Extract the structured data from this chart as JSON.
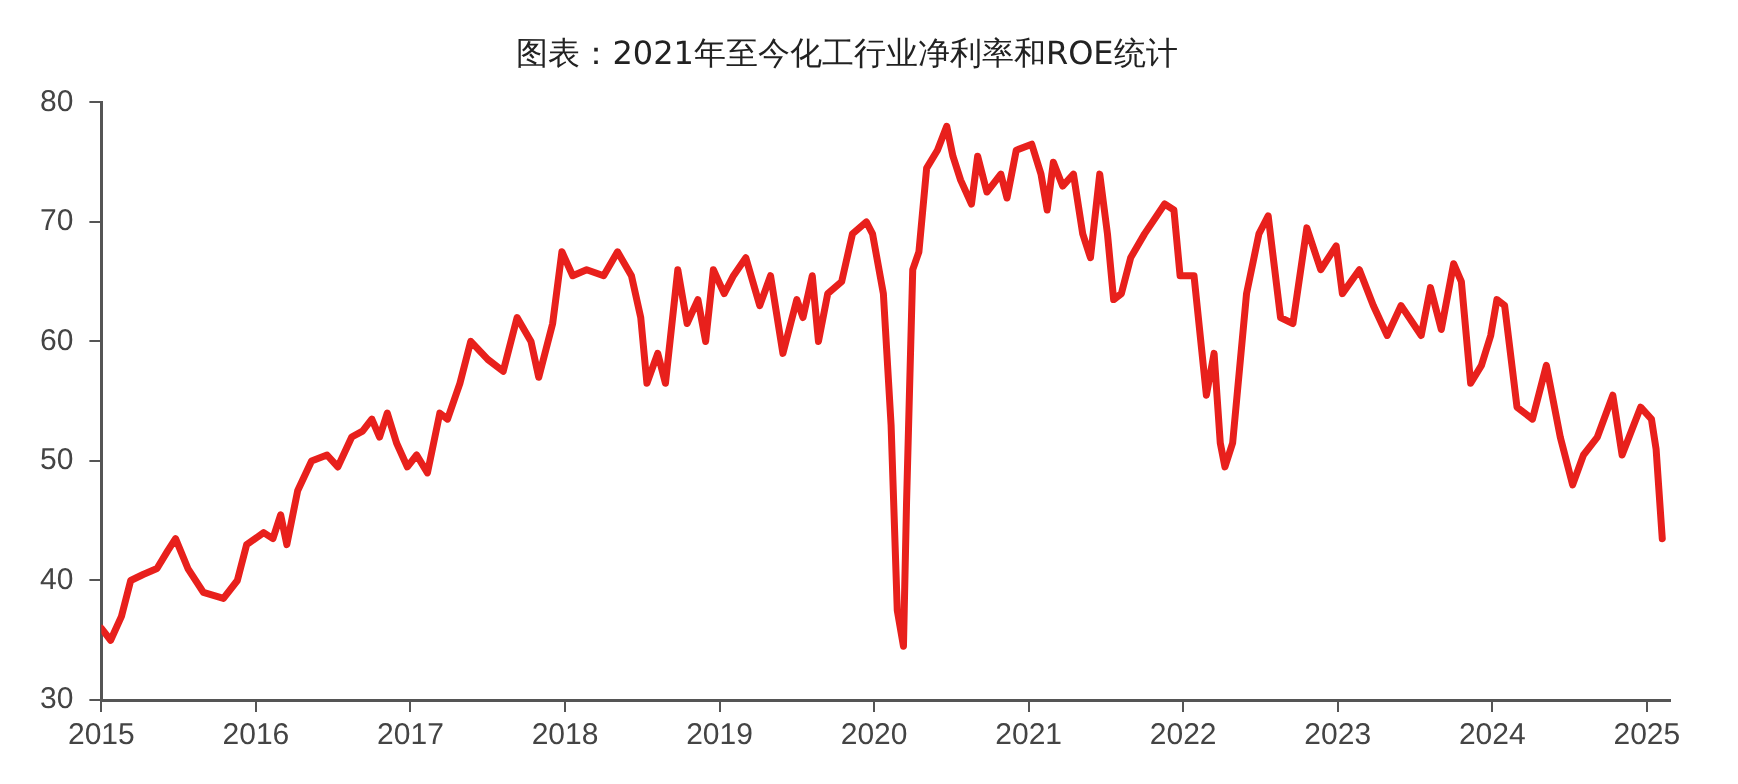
{
  "chart_data": {
    "type": "line",
    "title": "图表：2021年至今化工行业净利率和ROE统计",
    "xlim": [
      2015,
      2025.15
    ],
    "xticks": [
      2015,
      2016,
      2017,
      2018,
      2019,
      2020,
      2021,
      2022,
      2023,
      2024,
      2025
    ],
    "ylim": [
      30,
      80
    ],
    "yticks": [
      30,
      40,
      50,
      60,
      70,
      80
    ],
    "grid": false,
    "legend": false,
    "marker": "none",
    "line_style": "solid",
    "series": [
      {
        "color": "#e8201c",
        "x": [
          2015.0,
          2015.06,
          2015.13,
          2015.19,
          2015.27,
          2015.36,
          2015.43,
          2015.48,
          2015.56,
          2015.66,
          2015.79,
          2015.88,
          2015.94,
          2016.05,
          2016.11,
          2016.16,
          2016.2,
          2016.27,
          2016.36,
          2016.46,
          2016.53,
          2016.62,
          2016.69,
          2016.75,
          2016.8,
          2016.85,
          2016.91,
          2016.98,
          2017.04,
          2017.11,
          2017.19,
          2017.24,
          2017.32,
          2017.39,
          2017.5,
          2017.6,
          2017.69,
          2017.78,
          2017.83,
          2017.92,
          2017.98,
          2018.05,
          2018.14,
          2018.25,
          2018.34,
          2018.43,
          2018.49,
          2018.53,
          2018.6,
          2018.65,
          2018.73,
          2018.79,
          2018.86,
          2018.91,
          2018.96,
          2019.03,
          2019.09,
          2019.17,
          2019.26,
          2019.33,
          2019.41,
          2019.5,
          2019.54,
          2019.6,
          2019.64,
          2019.7,
          2019.79,
          2019.86,
          2019.95,
          2019.99,
          2020.06,
          2020.11,
          2020.15,
          2020.19,
          2020.21,
          2020.25,
          2020.29,
          2020.34,
          2020.41,
          2020.47,
          2020.51,
          2020.56,
          2020.63,
          2020.67,
          2020.73,
          2020.82,
          2020.86,
          2020.92,
          2021.02,
          2021.08,
          2021.12,
          2021.16,
          2021.22,
          2021.29,
          2021.35,
          2021.4,
          2021.46,
          2021.51,
          2021.55,
          2021.6,
          2021.66,
          2021.75,
          2021.88,
          2021.94,
          2021.98,
          2022.07,
          2022.15,
          2022.2,
          2022.24,
          2022.27,
          2022.32,
          2022.41,
          2022.49,
          2022.55,
          2022.63,
          2022.71,
          2022.8,
          2022.89,
          2022.99,
          2023.03,
          2023.14,
          2023.23,
          2023.32,
          2023.41,
          2023.54,
          2023.6,
          2023.67,
          2023.75,
          2023.8,
          2023.86,
          2023.93,
          2023.99,
          2024.03,
          2024.08,
          2024.16,
          2024.26,
          2024.35,
          2024.44,
          2024.52,
          2024.59,
          2024.68,
          2024.78,
          2024.84,
          2024.96,
          2025.03,
          2025.06,
          2025.1
        ],
        "values": [
          36,
          35,
          37,
          40,
          40.5,
          41,
          42.5,
          43.5,
          41,
          39,
          38.5,
          40,
          43,
          44,
          43.5,
          45.5,
          43,
          47.5,
          50,
          50.5,
          49.5,
          52,
          52.5,
          53.5,
          52,
          54,
          51.5,
          49.5,
          50.5,
          49,
          54,
          53.5,
          56.5,
          60,
          58.5,
          57.5,
          62,
          60,
          57,
          61.5,
          67.5,
          65.5,
          66,
          65.5,
          67.5,
          65.5,
          62,
          56.5,
          59,
          56.5,
          66,
          61.5,
          63.5,
          60,
          66,
          64,
          65.5,
          67,
          63,
          65.5,
          59,
          63.5,
          62,
          65.5,
          60,
          64,
          65,
          69,
          70,
          69,
          64,
          53,
          37.5,
          34.5,
          46.5,
          66,
          67.5,
          74.5,
          76,
          78,
          75.5,
          73.5,
          71.5,
          75.5,
          72.5,
          74,
          72,
          76,
          76.5,
          74,
          71,
          75,
          73,
          74,
          69,
          67,
          74,
          69,
          63.5,
          64,
          67,
          69,
          71.5,
          71,
          65.5,
          65.5,
          55.5,
          59,
          51.5,
          49.5,
          51.5,
          64,
          69,
          70.5,
          62,
          61.5,
          69.5,
          66,
          68,
          64,
          66,
          63,
          60.5,
          63,
          60.5,
          64.5,
          61,
          66.5,
          65,
          56.5,
          58,
          60.5,
          63.5,
          63,
          54.5,
          53.5,
          58,
          52,
          48,
          50.5,
          52,
          55.5,
          50.5,
          54.5,
          53.5,
          51,
          43.5
        ]
      }
    ]
  }
}
